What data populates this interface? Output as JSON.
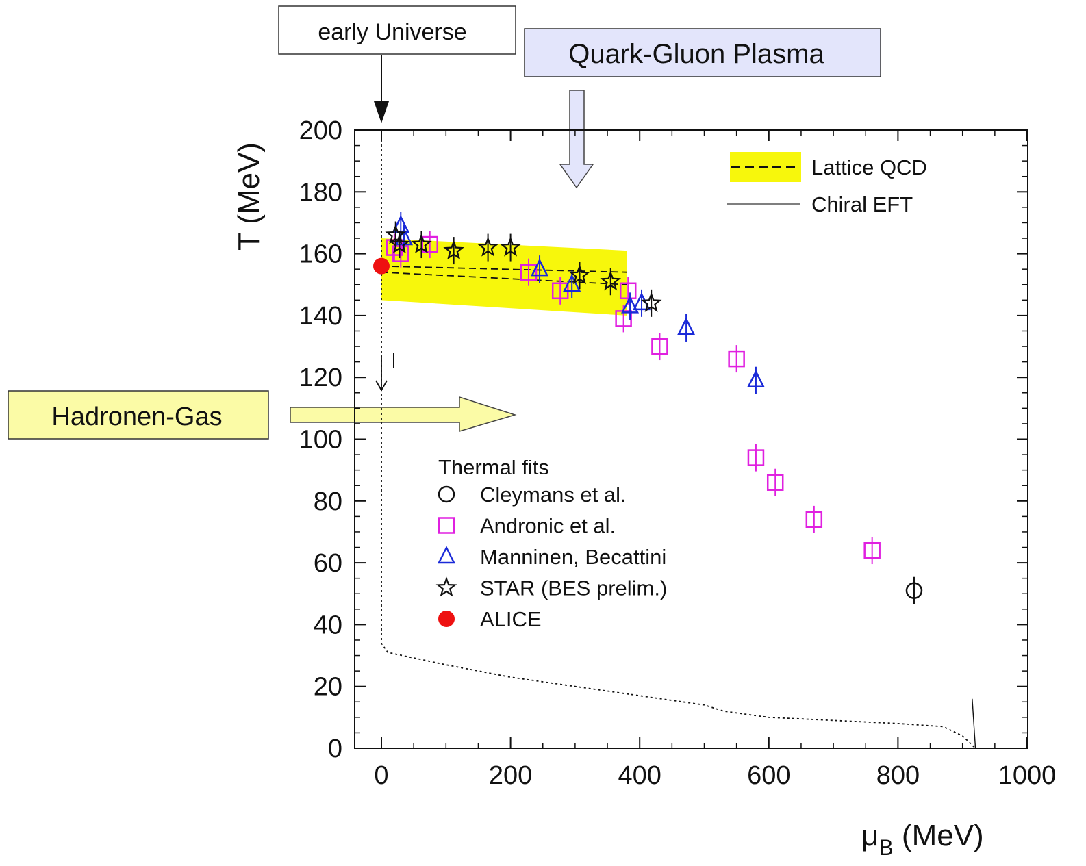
{
  "annotations": {
    "early_universe": "early Universe",
    "qgp": "Quark-Gluon Plasma",
    "hadron_gas": "Hadronen-Gas",
    "thermal_fits_partial": "Thermal fits"
  },
  "colors": {
    "qgp_box": "#e3e5fb",
    "hadron_box": "#fbfba6",
    "band": "#f7f70c",
    "andronic": "#e020e0",
    "manninen": "#1a2ad8",
    "star": "#111111",
    "alice": "#ee1111",
    "cleymans": "#111111"
  },
  "chart_data": {
    "type": "scatter",
    "xlabel": "μB (MeV)",
    "xlabel_main": "μ",
    "xlabel_sub": "B",
    "xlabel_unit": " (MeV)",
    "ylabel": "T (MeV)",
    "xlim": [
      -40,
      1000
    ],
    "ylim": [
      0,
      200
    ],
    "x_ticks": [
      0,
      200,
      400,
      600,
      800,
      1000
    ],
    "y_ticks": [
      0,
      20,
      40,
      60,
      80,
      100,
      120,
      140,
      160,
      180,
      200
    ],
    "legend_top": [
      {
        "label": "Lattice QCD",
        "style": "dashed-band"
      },
      {
        "label": "Chiral EFT",
        "style": "thin-line"
      }
    ],
    "series": [
      {
        "name": "Cleymans et al.",
        "marker": "circle",
        "points": [
          [
            825,
            51
          ]
        ]
      },
      {
        "name": "Andronic et al.",
        "marker": "square",
        "points": [
          [
            20,
            162
          ],
          [
            30,
            160
          ],
          [
            75,
            163
          ],
          [
            228,
            154
          ],
          [
            277,
            148
          ],
          [
            375,
            139
          ],
          [
            382,
            148
          ],
          [
            431,
            130
          ],
          [
            550,
            126
          ],
          [
            580,
            94
          ],
          [
            610,
            86
          ],
          [
            670,
            74
          ],
          [
            760,
            64
          ]
        ]
      },
      {
        "name": "Manninen, Becattini",
        "marker": "triangle",
        "points": [
          [
            30,
            169
          ],
          [
            35,
            165
          ],
          [
            245,
            155
          ],
          [
            295,
            150
          ],
          [
            385,
            143
          ],
          [
            403,
            144
          ],
          [
            472,
            136
          ],
          [
            580,
            119
          ]
        ]
      },
      {
        "name": "STAR (BES prelim.)",
        "marker": "star",
        "points": [
          [
            22,
            166
          ],
          [
            28,
            163
          ],
          [
            62,
            163
          ],
          [
            112,
            161
          ],
          [
            165,
            162
          ],
          [
            200,
            162
          ],
          [
            307,
            153
          ],
          [
            355,
            151
          ],
          [
            418,
            144
          ]
        ]
      },
      {
        "name": "ALICE",
        "marker": "dot",
        "points": [
          [
            0,
            156
          ]
        ]
      }
    ],
    "lattice_qcd": {
      "band_upper": [
        [
          0,
          165
        ],
        [
          380,
          161
        ]
      ],
      "band_lower": [
        [
          0,
          145
        ],
        [
          380,
          140
        ]
      ],
      "dashed_lines": [
        [
          [
            0,
            156
          ],
          [
            380,
            154
          ]
        ],
        [
          [
            0,
            154
          ],
          [
            380,
            150
          ]
        ]
      ]
    },
    "chiral_eft": [
      [
        920,
        0
      ],
      [
        915,
        16
      ]
    ],
    "boundary_curve": [
      [
        0,
        200
      ],
      [
        0,
        34
      ],
      [
        10,
        31
      ],
      [
        100,
        27
      ],
      [
        200,
        23
      ],
      [
        300,
        20
      ],
      [
        400,
        17
      ],
      [
        500,
        14
      ],
      [
        530,
        12
      ],
      [
        600,
        10
      ],
      [
        700,
        9
      ],
      [
        800,
        8
      ],
      [
        870,
        7
      ],
      [
        900,
        4
      ],
      [
        920,
        0
      ]
    ],
    "grid": false
  }
}
